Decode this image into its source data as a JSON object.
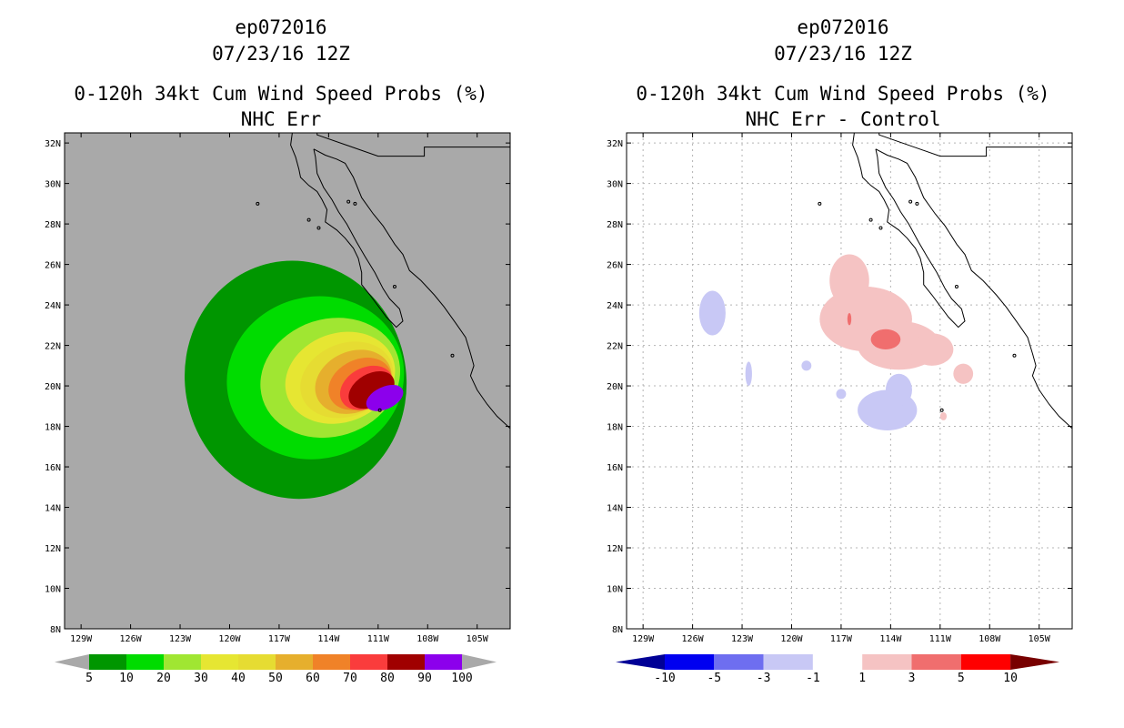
{
  "chart_data": [
    {
      "type": "heatmap",
      "id": "left",
      "title_lines": [
        "ep072016",
        "07/23/16 12Z",
        "0-120h 34kt Cum Wind Speed Probs (%)",
        "NHC Err"
      ],
      "xlim": [
        -130,
        -103
      ],
      "ylim": [
        8,
        32.5
      ],
      "x_ticks": [
        -129,
        -126,
        -123,
        -120,
        -117,
        -114,
        -111,
        -108,
        -105
      ],
      "x_tick_labels": [
        "129W",
        "126W",
        "123W",
        "120W",
        "117W",
        "114W",
        "111W",
        "108W",
        "105W"
      ],
      "y_ticks": [
        8,
        10,
        12,
        14,
        16,
        18,
        20,
        22,
        24,
        26,
        28,
        30,
        32
      ],
      "y_tick_labels": [
        "8N",
        "10N",
        "12N",
        "14N",
        "16N",
        "18N",
        "20N",
        "22N",
        "24N",
        "26N",
        "28N",
        "30N",
        "32N"
      ],
      "background_color": "#a9a9a9",
      "grid": false,
      "colorbar": {
        "levels": [
          "5",
          "10",
          "20",
          "30",
          "40",
          "50",
          "60",
          "70",
          "80",
          "90",
          "100"
        ],
        "colors": [
          "#009600",
          "#00dc00",
          "#a0e632",
          "#e6e632",
          "#e6dc32",
          "#e6af2d",
          "#f08228",
          "#fa3c3c",
          "#a00000",
          "#8c00ec"
        ],
        "under_color": "#a9a9a9",
        "over_color": "#a9a9a9"
      },
      "contours": [
        {
          "level": 5,
          "color": "#009600",
          "lon": -116,
          "lat": 20.3,
          "rx": 6.7,
          "ry": 5.9,
          "rot": -12
        },
        {
          "level": 10,
          "color": "#00dc00",
          "lon": -114.8,
          "lat": 20.4,
          "rx": 5.4,
          "ry": 4.0,
          "rot": -15
        },
        {
          "level": 20,
          "color": "#a0e632",
          "lon": -113.9,
          "lat": 20.4,
          "rx": 4.3,
          "ry": 2.9,
          "rot": -18
        },
        {
          "level": 30,
          "color": "#e6e632",
          "lon": -113.3,
          "lat": 20.4,
          "rx": 3.4,
          "ry": 2.2,
          "rot": -20
        },
        {
          "level": 40,
          "color": "#e6dc32",
          "lon": -112.9,
          "lat": 20.3,
          "rx": 2.9,
          "ry": 1.8,
          "rot": -22
        },
        {
          "level": 50,
          "color": "#e6af2d",
          "lon": -112.5,
          "lat": 20.2,
          "rx": 2.4,
          "ry": 1.5,
          "rot": -24
        },
        {
          "level": 60,
          "color": "#f08228",
          "lon": -112.1,
          "lat": 20.1,
          "rx": 2.0,
          "ry": 1.2,
          "rot": -26
        },
        {
          "level": 70,
          "color": "#fa3c3c",
          "lon": -111.7,
          "lat": 19.9,
          "rx": 1.7,
          "ry": 1.0,
          "rot": -28
        },
        {
          "level": 80,
          "color": "#a00000",
          "lon": -111.4,
          "lat": 19.8,
          "rx": 1.5,
          "ry": 0.8,
          "rot": -30
        },
        {
          "level": 90,
          "color": "#8c00ec",
          "lon": -110.6,
          "lat": 19.4,
          "rx": 1.2,
          "ry": 0.55,
          "rot": -25
        }
      ]
    },
    {
      "type": "heatmap",
      "id": "right",
      "title_lines": [
        "ep072016",
        "07/23/16 12Z",
        "0-120h 34kt Cum Wind Speed Probs (%)",
        "NHC Err - Control"
      ],
      "xlim": [
        -130,
        -103
      ],
      "ylim": [
        8,
        32.5
      ],
      "x_ticks": [
        -129,
        -126,
        -123,
        -120,
        -117,
        -114,
        -111,
        -108,
        -105
      ],
      "x_tick_labels": [
        "129W",
        "126W",
        "123W",
        "120W",
        "117W",
        "114W",
        "111W",
        "108W",
        "105W"
      ],
      "y_ticks": [
        8,
        10,
        12,
        14,
        16,
        18,
        20,
        22,
        24,
        26,
        28,
        30,
        32
      ],
      "y_tick_labels": [
        "8N",
        "10N",
        "12N",
        "14N",
        "16N",
        "18N",
        "20N",
        "22N",
        "24N",
        "26N",
        "28N",
        "30N",
        "32N"
      ],
      "background_color": "#ffffff",
      "grid": true,
      "colorbar": {
        "levels": [
          "-10",
          "-5",
          "-3",
          "-1",
          "1",
          "3",
          "5",
          "10"
        ],
        "colors": [
          "#0000f0",
          "#6e6ef0",
          "#c8c8f5",
          "#ffffff",
          "#f5c3c3",
          "#f06e6e",
          "#ff0000"
        ],
        "under_color": "#000096",
        "over_color": "#780000"
      },
      "blobs": [
        {
          "color": "#f5c3c3",
          "lon": -116.5,
          "lat": 25.2,
          "rx": 1.2,
          "ry": 1.3
        },
        {
          "color": "#f5c3c3",
          "lon": -115.5,
          "lat": 23.3,
          "rx": 2.8,
          "ry": 1.6
        },
        {
          "color": "#f5c3c3",
          "lon": -113.5,
          "lat": 22.0,
          "rx": 2.5,
          "ry": 1.2
        },
        {
          "color": "#f5c3c3",
          "lon": -111.5,
          "lat": 21.8,
          "rx": 1.3,
          "ry": 0.8
        },
        {
          "color": "#f5c3c3",
          "lon": -109.6,
          "lat": 20.6,
          "rx": 0.6,
          "ry": 0.5
        },
        {
          "color": "#f5c3c3",
          "lon": -110.8,
          "lat": 18.5,
          "rx": 0.2,
          "ry": 0.2
        },
        {
          "color": "#f06e6e",
          "lon": -114.3,
          "lat": 22.3,
          "rx": 0.9,
          "ry": 0.5
        },
        {
          "color": "#f06e6e",
          "lon": -116.5,
          "lat": 23.3,
          "rx": 0.12,
          "ry": 0.3
        },
        {
          "color": "#c8c8f5",
          "lon": -124.8,
          "lat": 23.6,
          "rx": 0.8,
          "ry": 1.1
        },
        {
          "color": "#c8c8f5",
          "lon": -114.2,
          "lat": 18.8,
          "rx": 1.8,
          "ry": 1.0
        },
        {
          "color": "#c8c8f5",
          "lon": -113.5,
          "lat": 19.8,
          "rx": 0.8,
          "ry": 0.8
        },
        {
          "color": "#c8c8f5",
          "lon": -122.6,
          "lat": 20.6,
          "rx": 0.2,
          "ry": 0.6
        },
        {
          "color": "#c8c8f5",
          "lon": -119.1,
          "lat": 21.0,
          "rx": 0.3,
          "ry": 0.25
        },
        {
          "color": "#c8c8f5",
          "lon": -117.0,
          "lat": 19.6,
          "rx": 0.3,
          "ry": 0.25
        }
      ]
    }
  ]
}
